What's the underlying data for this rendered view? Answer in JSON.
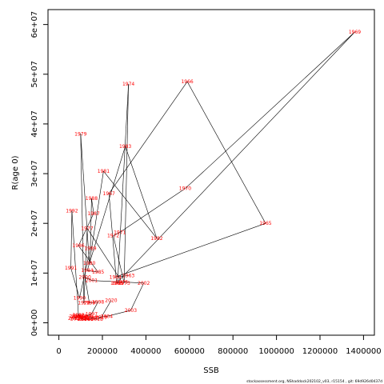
{
  "chart_data": {
    "type": "line",
    "xlabel": "SSB",
    "ylabel": "R(age 0)",
    "xlim": [
      -50000,
      1450000
    ],
    "ylim": [
      -2500000,
      63000000
    ],
    "x_ticks": [
      0,
      200000,
      400000,
      600000,
      800000,
      1000000,
      1200000,
      1400000
    ],
    "x_tick_labels": [
      "0",
      "200000",
      "400000",
      "600000",
      "800000",
      "1000000",
      "1200000",
      "1400000"
    ],
    "y_ticks": [
      0,
      10000000,
      20000000,
      30000000,
      40000000,
      50000000,
      60000000
    ],
    "y_tick_labels": [
      "0e+00",
      "1e+07",
      "2e+07",
      "3e+07",
      "4e+07",
      "5e+07",
      "6e+07"
    ],
    "grid": false,
    "line_color": "#000000",
    "label_color": "#ff0000",
    "years": [
      1963,
      1964,
      1965,
      1966,
      1967,
      1968,
      1969,
      1970,
      1971,
      1972,
      1973,
      1974,
      1975,
      1976,
      1977,
      1978,
      1979,
      1980,
      1981,
      1982,
      1983,
      1984,
      1985,
      1986,
      1987,
      1988,
      1989,
      1990,
      1991,
      1992,
      1993,
      1994,
      1995,
      1996,
      1997,
      1998,
      1999,
      2000,
      2001,
      2002,
      2003,
      2004,
      2005,
      2006,
      2007,
      2008,
      2009,
      2010,
      2011,
      2012,
      2013,
      2014,
      2015,
      2016,
      2017,
      2018,
      2019,
      2020
    ],
    "ssb": [
      320000,
      260000,
      950000,
      590000,
      230000,
      265000,
      1360000,
      580000,
      280000,
      250000,
      300000,
      320000,
      270000,
      290000,
      130000,
      115000,
      100000,
      140000,
      205000,
      450000,
      305000,
      130000,
      180000,
      90000,
      160000,
      150000,
      145000,
      95000,
      55000,
      60000,
      90000,
      100000,
      110000,
      130000,
      150000,
      180000,
      140000,
      120000,
      150000,
      390000,
      330000,
      220000,
      160000,
      115000,
      100000,
      85000,
      80000,
      75000,
      70000,
      90000,
      100000,
      115000,
      130000,
      140000,
      150000,
      175000,
      195000,
      240000
    ],
    "recruitment": [
      9500000,
      9200000,
      20000000,
      48500000,
      26000000,
      8000000,
      58500000,
      27000000,
      18200000,
      17500000,
      8000000,
      48000000,
      8000000,
      8200000,
      19000000,
      4000000,
      38000000,
      12000000,
      30500000,
      17000000,
      35500000,
      10500000,
      10200000,
      15500000,
      22000000,
      25000000,
      15000000,
      5000000,
      11000000,
      22500000,
      1500000,
      1200000,
      1000000,
      1400000,
      1800000,
      4200000,
      4000000,
      9200000,
      8500000,
      8000000,
      2500000,
      1300000,
      1000000,
      700000,
      900000,
      1200000,
      800000,
      1300000,
      900000,
      1500000,
      1100000,
      700000,
      700000,
      900000,
      1000000,
      700000,
      1100000,
      4500000
    ],
    "footer": "stockassessment.org, NShaddock202102_v03, r15154 , git: 69d926d0437d"
  }
}
